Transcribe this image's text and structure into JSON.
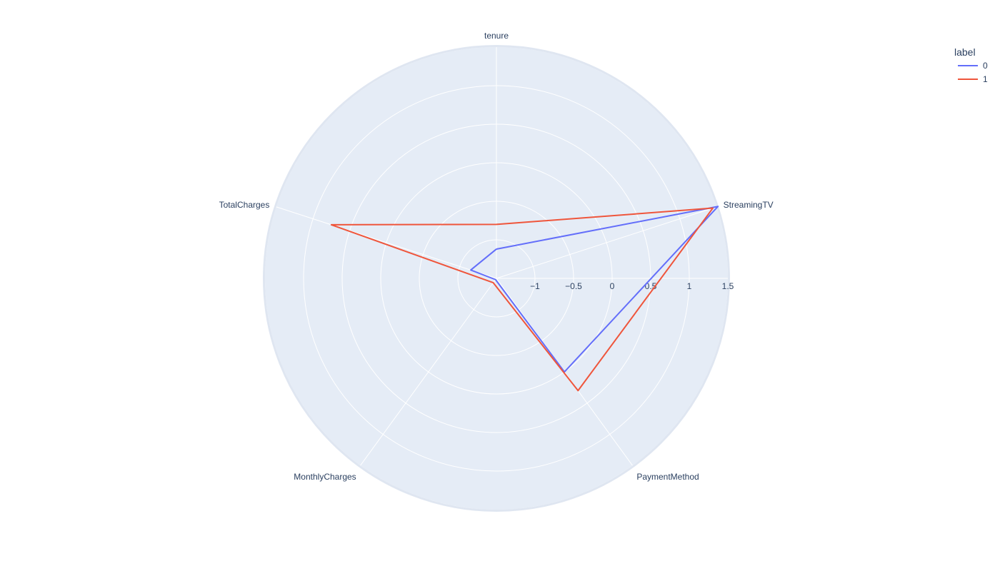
{
  "chart_data": {
    "type": "radar",
    "categories": [
      "tenure",
      "StreamingTV",
      "PaymentMethod",
      "MonthlyCharges",
      "TotalCharges"
    ],
    "radial_range": [
      -1.5,
      1.5
    ],
    "radial_ticks": [
      -1,
      -0.5,
      0,
      0.5,
      1,
      1.5
    ],
    "radial_tick_labels": [
      "−1",
      "−0.5",
      "0",
      "0.5",
      "1",
      "1.5"
    ],
    "series": [
      {
        "name": "0",
        "color": "#636efa",
        "values": [
          -1.12,
          1.52,
          0.0,
          -1.48,
          -1.15
        ]
      },
      {
        "name": "1",
        "color": "#ef553b",
        "values": [
          -0.8,
          1.45,
          0.3,
          -1.43,
          0.75
        ]
      }
    ],
    "legend": {
      "title": "label",
      "position": "top-right"
    },
    "grid": true,
    "background": "#e5ecf6",
    "grid_color": "#ffffff",
    "text_color": "#2a3f5f"
  }
}
